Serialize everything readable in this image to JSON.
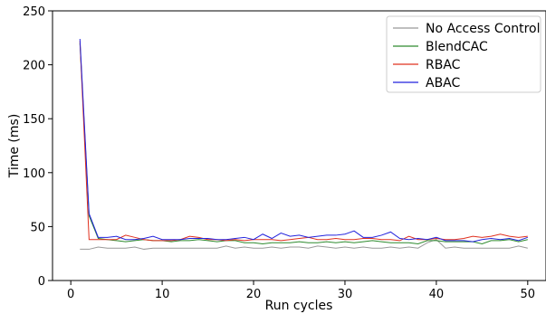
{
  "chart_data": {
    "type": "line",
    "xlabel": "Run cycles",
    "ylabel": "Time (ms)",
    "xlim": [
      -2,
      52
    ],
    "ylim": [
      0,
      250
    ],
    "xticks": [
      0,
      10,
      20,
      30,
      40,
      50
    ],
    "yticks": [
      0,
      50,
      100,
      150,
      200,
      250
    ],
    "grid": false,
    "legend_position": "top-right",
    "x": [
      1,
      2,
      3,
      4,
      5,
      6,
      7,
      8,
      9,
      10,
      11,
      12,
      13,
      14,
      15,
      16,
      17,
      18,
      19,
      20,
      21,
      22,
      23,
      24,
      25,
      26,
      27,
      28,
      29,
      30,
      31,
      32,
      33,
      34,
      35,
      36,
      37,
      38,
      39,
      40,
      41,
      42,
      43,
      44,
      45,
      46,
      47,
      48,
      49,
      50
    ],
    "series": [
      {
        "name": "No Access Control",
        "color": "#999999",
        "values": [
          29,
          29,
          31,
          30,
          30,
          30,
          31,
          29,
          30,
          30,
          30,
          30,
          30,
          30,
          30,
          30,
          32,
          30,
          31,
          30,
          30,
          31,
          30,
          31,
          31,
          30,
          32,
          31,
          30,
          31,
          30,
          31,
          30,
          30,
          31,
          30,
          31,
          30,
          35,
          38,
          30,
          31,
          30,
          30,
          30,
          30,
          30,
          30,
          32,
          30
        ]
      },
      {
        "name": "BlendCAC",
        "color": "#2e8b2e",
        "values": [
          220,
          60,
          39,
          38,
          37,
          36,
          37,
          38,
          37,
          37,
          36,
          37,
          37,
          38,
          37,
          36,
          37,
          37,
          35,
          35,
          34,
          35,
          35,
          35,
          36,
          35,
          35,
          36,
          35,
          36,
          35,
          36,
          37,
          36,
          35,
          35,
          35,
          34,
          37,
          37,
          36,
          36,
          36,
          36,
          34,
          37,
          37,
          38,
          36,
          38
        ]
      },
      {
        "name": "RBAC",
        "color": "#e0301e",
        "values": [
          222,
          38,
          38,
          38,
          38,
          42,
          40,
          38,
          37,
          37,
          37,
          38,
          41,
          40,
          38,
          38,
          37,
          38,
          37,
          38,
          38,
          38,
          37,
          38,
          39,
          40,
          38,
          38,
          39,
          38,
          38,
          39,
          39,
          38,
          38,
          37,
          41,
          38,
          38,
          39,
          38,
          38,
          39,
          41,
          40,
          41,
          43,
          41,
          40,
          41
        ]
      },
      {
        "name": "ABAC",
        "color": "#2222dd",
        "values": [
          224,
          62,
          40,
          40,
          41,
          38,
          38,
          39,
          41,
          38,
          38,
          38,
          39,
          39,
          39,
          38,
          38,
          39,
          40,
          38,
          43,
          39,
          44,
          41,
          42,
          40,
          41,
          42,
          42,
          43,
          46,
          40,
          40,
          42,
          45,
          39,
          38,
          39,
          38,
          40,
          37,
          37,
          37,
          36,
          38,
          39,
          38,
          39,
          37,
          40
        ]
      }
    ]
  }
}
